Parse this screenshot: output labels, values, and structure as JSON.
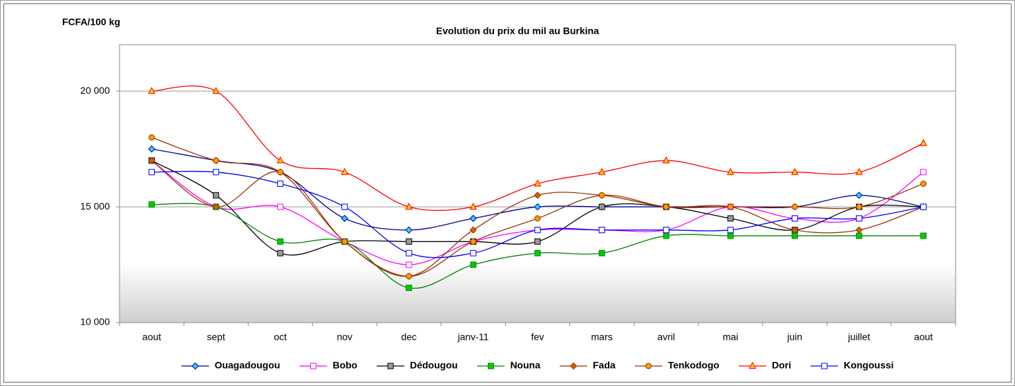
{
  "chart_data": {
    "type": "line",
    "title": "Evolution du prix du mil au Burkina",
    "y_label": "FCFA/100 kg",
    "categories": [
      "aout",
      "sept",
      "oct",
      "nov",
      "dec",
      "janv-11",
      "fev",
      "mars",
      "avril",
      "mai",
      "juin",
      "juillet",
      "aout"
    ],
    "ylim": [
      10000,
      22000
    ],
    "yticks": [
      {
        "value": 10000,
        "label": "10 000"
      },
      {
        "value": 15000,
        "label": "15 000"
      },
      {
        "value": 20000,
        "label": "20 000"
      }
    ],
    "grid": true,
    "smooth": true,
    "legend": "bottom",
    "series": [
      {
        "name": "Ouagadougou",
        "color": "#000099",
        "marker": "diamond",
        "marker_fill": "#33CCFF",
        "values": [
          17500,
          17000,
          16500,
          14500,
          14000,
          14500,
          15000,
          15000,
          15000,
          15000,
          15000,
          15500,
          15000
        ]
      },
      {
        "name": "Bobo",
        "color": "#FF00FF",
        "marker": "square",
        "marker_fill": "#FFFFFF",
        "values": [
          17000,
          15000,
          15000,
          13500,
          12500,
          13500,
          14000,
          14000,
          14000,
          15000,
          14500,
          14500,
          16500
        ]
      },
      {
        "name": "Dédougou",
        "color": "#000000",
        "marker": "square",
        "marker_fill": "#999999",
        "values": [
          17000,
          15500,
          13000,
          13500,
          13500,
          13500,
          13500,
          15000,
          15000,
          14500,
          14000,
          15000,
          15000
        ]
      },
      {
        "name": "Nouna",
        "color": "#008000",
        "marker": "square",
        "marker_fill": "#00CC00",
        "values": [
          15100,
          15000,
          13500,
          13500,
          11500,
          12500,
          13000,
          13000,
          13750,
          13750,
          13750,
          13750,
          13750
        ]
      },
      {
        "name": "Fada",
        "color": "#993300",
        "marker": "diamond",
        "marker_fill": "#CC6600",
        "values": [
          17000,
          15000,
          16500,
          13500,
          12000,
          14000,
          15500,
          15500,
          15000,
          15000,
          14000,
          14000,
          15000
        ]
      },
      {
        "name": "Tenkodogo",
        "color": "#993300",
        "marker": "circle",
        "marker_fill": "#FF9900",
        "values": [
          18000,
          17000,
          16500,
          13500,
          12000,
          13500,
          14500,
          15500,
          15000,
          15000,
          15000,
          15000,
          16000
        ]
      },
      {
        "name": "Dori",
        "color": "#FF0000",
        "marker": "triangle",
        "marker_fill": "#FFCC00",
        "values": [
          20000,
          20000,
          17000,
          16500,
          15000,
          15000,
          16000,
          16500,
          17000,
          16500,
          16500,
          16500,
          17750
        ]
      },
      {
        "name": "Kongoussi",
        "color": "#0000FF",
        "marker": "square",
        "marker_fill": "#FFFFFF",
        "values": [
          16500,
          16500,
          16000,
          15000,
          13000,
          13000,
          14000,
          14000,
          14000,
          14000,
          14500,
          14500,
          15000
        ]
      }
    ]
  }
}
